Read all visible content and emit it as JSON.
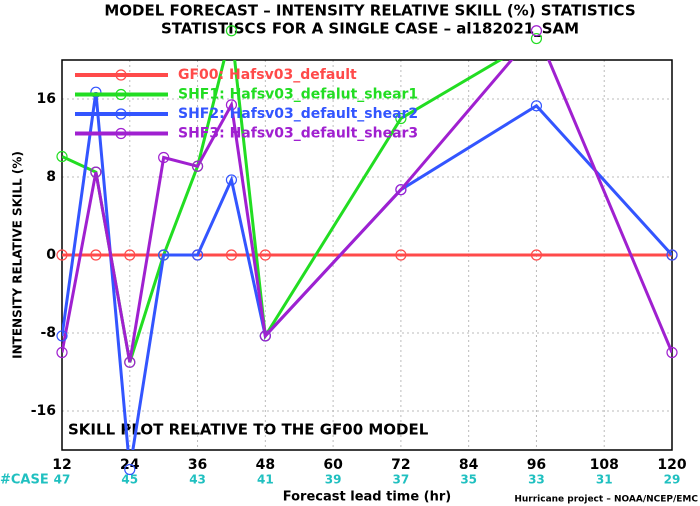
{
  "chart_data": {
    "type": "line",
    "title": "MODEL FORECAST – INTENSITY RELATIVE SKILL (%) STATISTICS",
    "subtitle": "STATISTISCS FOR A SINGLE CASE – al182021_SAM",
    "x_label": "Forecast lead time (hr)",
    "y_label": "INTENSITY RELATIVE SKILL (%)",
    "annotation": "SKILL PLOT RELATIVE TO THE GF00 MODEL",
    "footer": "Hurricane project – NOAA/NCEP/EMC",
    "case_label": "#CASE",
    "cases": [
      47,
      45,
      43,
      41,
      39,
      37,
      35,
      33,
      31,
      29
    ],
    "x": [
      12,
      18,
      24,
      30,
      36,
      42,
      48,
      72,
      96,
      120
    ],
    "series": [
      {
        "name": "GF00: Hafsv03_default",
        "color": "#ff4a4a",
        "values": [
          0,
          0,
          0,
          0,
          0,
          0,
          0,
          0,
          0,
          0
        ]
      },
      {
        "name": "SHF1: Hafsv03_defalut_shear1",
        "color": "#22dd22",
        "values": [
          10.1,
          8.5,
          -11,
          0,
          9.1,
          23,
          -8.3,
          14,
          22.2,
          null
        ]
      },
      {
        "name": "SHF2: Hafsv03_default_shear2",
        "color": "#3355ff",
        "values": [
          -8.3,
          16.7,
          -22,
          0,
          0,
          7.7,
          -8.3,
          6.7,
          15.3,
          0
        ]
      },
      {
        "name": "SHF3: Hafsv03_default_shear3",
        "color": "#a020d0",
        "values": [
          -10,
          8.5,
          -11,
          10,
          9.1,
          15.4,
          -8.3,
          6.7,
          23,
          -10
        ]
      }
    ],
    "xlim": [
      12,
      120
    ],
    "xticks": [
      12,
      24,
      36,
      48,
      60,
      72,
      84,
      96,
      108,
      120
    ],
    "ylim": [
      -20,
      20
    ],
    "yticks": [
      -16,
      -8,
      0,
      8,
      16
    ],
    "grid": true,
    "legend": "upper left"
  }
}
